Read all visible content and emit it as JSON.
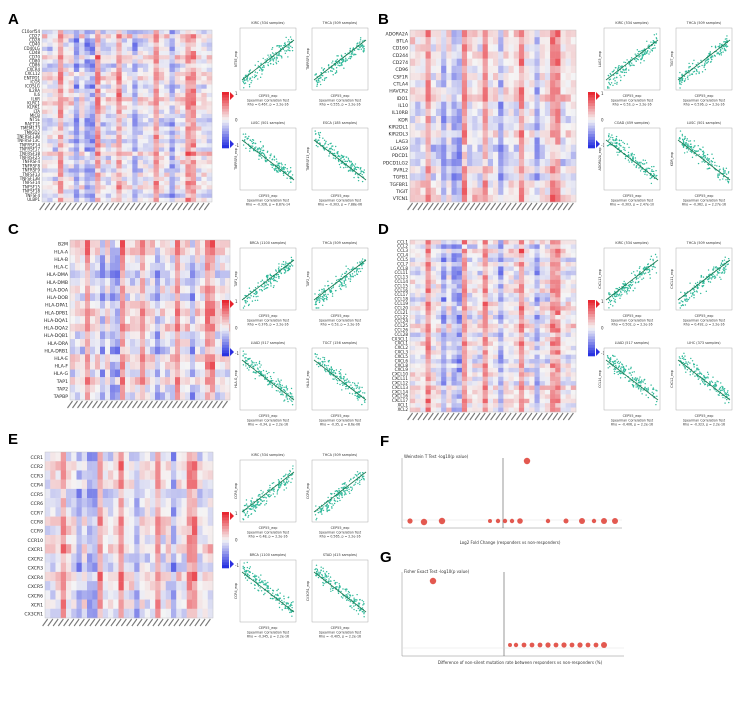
{
  "panels": {
    "A": {
      "label": "A",
      "rows": [
        "C10orf54",
        "CD27",
        "CD28",
        "CD40",
        "CD40LG",
        "CD48",
        "CD70",
        "CD80",
        "CD86",
        "CXCR4",
        "CXCL12",
        "ENTPD1",
        "ICOS",
        "ICOSLG",
        "IL2RA",
        "IL6",
        "IL6R",
        "KLRC1",
        "KLRK1",
        "LTA",
        "MICB",
        "NT5E",
        "RAET1E",
        "TMEM173",
        "TMIGD2",
        "TNFRSF13B",
        "TNFRSF13C",
        "TNFRSF14",
        "TNFRSF17",
        "TNFRSF18",
        "TNFRSF25",
        "TNFRSF4",
        "TNFRSF8",
        "TNFRSF9",
        "TNFSF13",
        "TNFSF13B",
        "TNFSF14",
        "TNFSF15",
        "TNFSF18",
        "TNFSF4",
        "ULBP1"
      ],
      "scatters": [
        {
          "title": "KIRC (534 samples)",
          "rho": "Rho = 0.467, p = 2.2e-16",
          "trend": "up",
          "ylabel": "NT5E_exp"
        },
        {
          "title": "THCA (509 samples)",
          "rho": "Rho = 0.555, p = 2.2e-16",
          "trend": "up",
          "ylabel": "TNFRSF9_exp"
        },
        {
          "title": "LUSC (501 samples)",
          "rho": "Rho = -0.326, p = 8.87e-14",
          "trend": "down",
          "ylabel": "TNFRSF8_exp"
        },
        {
          "title": "ESCA (185 samples)",
          "rho": "Rho = -0.303, p = 7.88e-06",
          "trend": "down",
          "ylabel": "TNFRSF13_exp"
        }
      ]
    },
    "B": {
      "label": "B",
      "rows": [
        "ADORA2A",
        "BTLA",
        "CD160",
        "CD244",
        "CD274",
        "CD96",
        "CSF1R",
        "CTLA4",
        "HAVCR2",
        "IDO1",
        "IL10",
        "IL10RB",
        "KDR",
        "KIR2DL1",
        "KIR2DL3",
        "LAG3",
        "LGALS9",
        "PDCD1",
        "PDCD1LG2",
        "PVRL2",
        "TGFB1",
        "TGFBR1",
        "TIGIT",
        "VTCN1"
      ],
      "scatters": [
        {
          "title": "KIRC (534 samples)",
          "rho": "Rho = 0.53, p = 2.2e-16",
          "trend": "up",
          "ylabel": "LAG3_exp"
        },
        {
          "title": "THCA (509 samples)",
          "rho": "Rho = 0.536, p = 2.2e-16",
          "trend": "up",
          "ylabel": "TIGIT_exp"
        },
        {
          "title": "COAD (459 samples)",
          "rho": "Rho = -0.303, p = 2.47e-10",
          "trend": "down",
          "ylabel": "ADORA2A_exp"
        },
        {
          "title": "LUSC (501 samples)",
          "rho": "Rho = -0.362, p = 2.27e-16",
          "trend": "down",
          "ylabel": "KDR_exp"
        }
      ]
    },
    "C": {
      "label": "C",
      "rows": [
        "B2M",
        "HLA-A",
        "HLA-B",
        "HLA-C",
        "HLA-DMA",
        "HLA-DMB",
        "HLA-DOA",
        "HLA-DOB",
        "HLA-DPA1",
        "HLA-DPB1",
        "HLA-DQA1",
        "HLA-DQA2",
        "HLA-DQB1",
        "HLA-DRA",
        "HLA-DRB1",
        "HLA-E",
        "HLA-F",
        "HLA-G",
        "TAP1",
        "TAP2",
        "TAPBP"
      ],
      "scatters": [
        {
          "title": "BRCA (1100 samples)",
          "rho": "Rho = 0.376, p = 2.2e-16",
          "trend": "up",
          "ylabel": "TAP1_exp"
        },
        {
          "title": "THCA (509 samples)",
          "rho": "Rho = 0.53, p = 2.2e-16",
          "trend": "up",
          "ylabel": "TAP2_exp"
        },
        {
          "title": "LUAD (517 samples)",
          "rho": "Rho = -0.34, p = 2.2e-16",
          "trend": "down",
          "ylabel": "HLA-G_exp"
        },
        {
          "title": "TGCT (156 samples)",
          "rho": "Rho = -0.35, p = 8.6e-06",
          "trend": "down",
          "ylabel": "HLA-E_exp"
        }
      ]
    },
    "D": {
      "label": "D",
      "rows": [
        "CCL1",
        "CCL2",
        "CCL3",
        "CCL4",
        "CCL5",
        "CCL7",
        "CCL8",
        "CCL11",
        "CCL13",
        "CCL14",
        "CCL15",
        "CCL16",
        "CCL17",
        "CCL18",
        "CCL19",
        "CCL20",
        "CCL21",
        "CCL22",
        "CCL24",
        "CCL25",
        "CCL26",
        "CCL28",
        "CX3CL1",
        "CXCL1",
        "CXCL2",
        "CXCL3",
        "CXCL5",
        "CXCL6",
        "CXCL8",
        "CXCL9",
        "CXCL10",
        "CXCL11",
        "CXCL12",
        "CXCL13",
        "CXCL14",
        "CXCL16",
        "CXCL17",
        "XCL1",
        "XCL2"
      ],
      "scatters": [
        {
          "title": "KIRC (534 samples)",
          "rho": "Rho = 0.502, p = 2.2e-16",
          "trend": "up",
          "ylabel": "CXCL13_exp"
        },
        {
          "title": "THCA (509 samples)",
          "rho": "Rho = 0.492, p = 2.2e-16",
          "trend": "up",
          "ylabel": "CXCL11_exp"
        },
        {
          "title": "LUAD (517 samples)",
          "rho": "Rho = -0.406, p = 2.2e-16",
          "trend": "down",
          "ylabel": "CCL14_exp"
        },
        {
          "title": "LIHC (373 samples)",
          "rho": "Rho = -0.323, p = 2.2e-16",
          "trend": "down",
          "ylabel": "CXCL2_exp"
        }
      ]
    },
    "E": {
      "label": "E",
      "rows": [
        "CCR1",
        "CCR2",
        "CCR3",
        "CCR4",
        "CCR5",
        "CCR6",
        "CCR7",
        "CCR8",
        "CCR9",
        "CCR10",
        "CXCR1",
        "CXCR2",
        "CXCR3",
        "CXCR4",
        "CXCR5",
        "CXCR6",
        "XCR1",
        "CX3CR1"
      ],
      "scatters": [
        {
          "title": "KIRC (534 samples)",
          "rho": "Rho = 0.48, p = 2.2e-16",
          "trend": "up",
          "ylabel": "CCR8_exp"
        },
        {
          "title": "THCA (509 samples)",
          "rho": "Rho = 0.565, p = 2.2e-16",
          "trend": "up",
          "ylabel": "CCR8_exp"
        },
        {
          "title": "BRCA (1100 samples)",
          "rho": "Rho = -0.345, p = 2.2e-16",
          "trend": "down",
          "ylabel": "CCR4_exp"
        },
        {
          "title": "STAD (415 samples)",
          "rho": "Rho = -0.405, p = 2.2e-16",
          "trend": "down",
          "ylabel": "CX3CR1_exp"
        }
      ]
    },
    "F": {
      "label": "F",
      "ylabel": "Weinstein T Test -log10(p value)",
      "xlabel": "Log2 Fold Change (responders vs non-responders)"
    },
    "G": {
      "label": "G",
      "ylabel": "Fisher Exact Test -log10(p value)",
      "xlabel": "Difference of non-silent mutation rate between responders vs non-responders (%)"
    }
  },
  "scatter_common": {
    "xlabel": "CEP55_exp",
    "method": "Spearman Correlation Test"
  },
  "legend": {
    "max": "1",
    "mid": "0",
    "min": "-1"
  },
  "colors": {
    "positive": "#e8212b",
    "negative": "#2b2fe0",
    "point": "#2fb99a",
    "line": "#1d7a52",
    "neutral": "#f5f5f5"
  }
}
